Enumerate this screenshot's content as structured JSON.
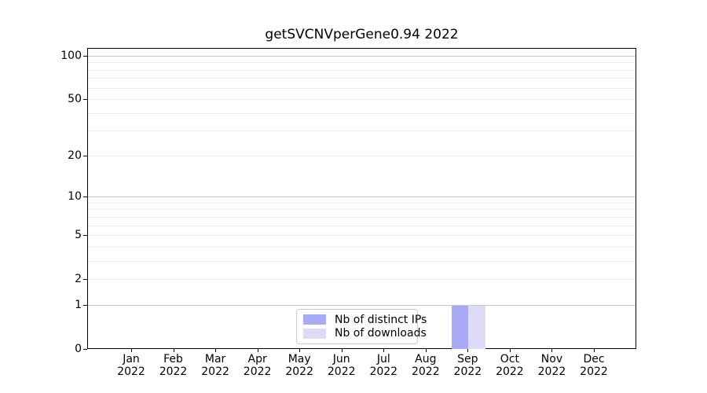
{
  "chart_data": {
    "type": "bar",
    "title": "getSVCNVperGene0.94 2022",
    "xlabel": "",
    "ylabel": "",
    "categories": [
      "Jan 2022",
      "Feb 2022",
      "Mar 2022",
      "Apr 2022",
      "May 2022",
      "Jun 2022",
      "Jul 2022",
      "Aug 2022",
      "Sep 2022",
      "Oct 2022",
      "Nov 2022",
      "Dec 2022"
    ],
    "x_tick_labels": [
      {
        "month": "Jan",
        "year": "2022"
      },
      {
        "month": "Feb",
        "year": "2022"
      },
      {
        "month": "Mar",
        "year": "2022"
      },
      {
        "month": "Apr",
        "year": "2022"
      },
      {
        "month": "May",
        "year": "2022"
      },
      {
        "month": "Jun",
        "year": "2022"
      },
      {
        "month": "Jul",
        "year": "2022"
      },
      {
        "month": "Aug",
        "year": "2022"
      },
      {
        "month": "Sep",
        "year": "2022"
      },
      {
        "month": "Oct",
        "year": "2022"
      },
      {
        "month": "Nov",
        "year": "2022"
      },
      {
        "month": "Dec",
        "year": "2022"
      }
    ],
    "series": [
      {
        "name": "Nb of distinct IPs",
        "color": "#a9a9f6",
        "values": [
          0,
          0,
          0,
          0,
          0,
          0,
          0,
          0,
          1,
          0,
          0,
          0
        ]
      },
      {
        "name": "Nb of downloads",
        "color": "#dcdcf9",
        "values": [
          0,
          0,
          0,
          0,
          0,
          0,
          0,
          0,
          1,
          0,
          0,
          0
        ]
      }
    ],
    "y_axis": {
      "scale": "log1p",
      "range": [
        0,
        101
      ],
      "ticks": [
        {
          "value": 0,
          "label": "0"
        },
        {
          "value": 1,
          "label": "1"
        },
        {
          "value": 2,
          "label": "2"
        },
        {
          "value": 5,
          "label": "5"
        },
        {
          "value": 10,
          "label": "10"
        },
        {
          "value": 20,
          "label": "20"
        },
        {
          "value": 50,
          "label": "50"
        },
        {
          "value": 100,
          "label": "100"
        }
      ]
    },
    "gridlines": {
      "major": [
        1,
        10,
        100
      ],
      "minor": [
        2,
        3,
        4,
        5,
        6,
        7,
        8,
        9,
        20,
        30,
        40,
        50,
        60,
        70,
        80,
        90
      ]
    },
    "legend": {
      "position": "lower center",
      "entries": [
        "Nb of distinct IPs",
        "Nb of downloads"
      ]
    }
  },
  "colors": {
    "background": "#ffffff",
    "bar_distinct_ips": "#a9a9f6",
    "bar_downloads": "#dcdcf9",
    "grid_major": "#c6c6c6",
    "grid_minor": "#ececec",
    "axis": "#000000",
    "legend_border": "#cccccc",
    "text": "#000000"
  }
}
